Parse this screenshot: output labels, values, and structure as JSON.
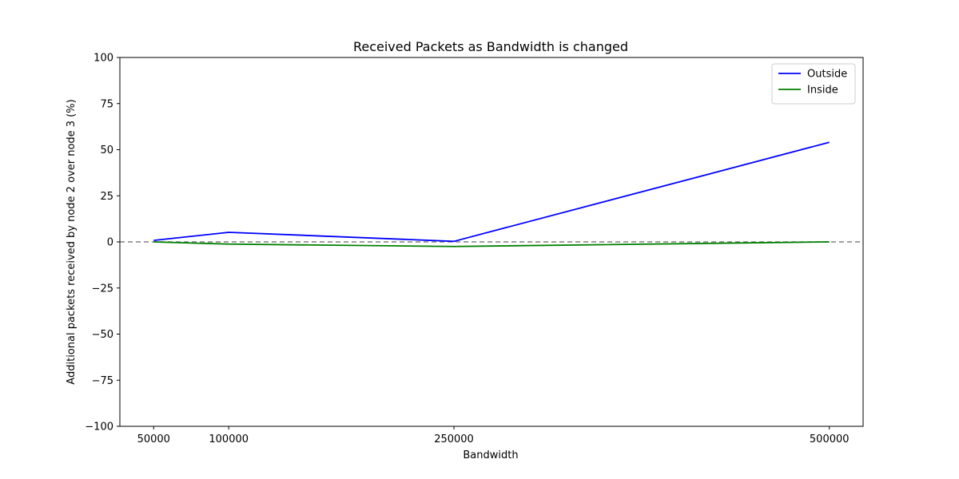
{
  "chart_data": {
    "type": "line",
    "title": "Received Packets as Bandwidth is changed",
    "xlabel": "Bandwidth",
    "ylabel": "Additional packets received by node 2 over node 3 (%)",
    "x": [
      50000,
      100000,
      250000,
      500000
    ],
    "x_tick_labels": [
      "50000",
      "100000",
      "250000",
      "500000"
    ],
    "y_ticks": [
      100,
      75,
      50,
      25,
      0,
      -25,
      -50,
      -75,
      -100
    ],
    "y_tick_labels": [
      "100",
      "75",
      "50",
      "25",
      "0",
      "−25",
      "−50",
      "−75",
      "−100"
    ],
    "ylim": [
      -100,
      100
    ],
    "xlim": [
      27500,
      522500
    ],
    "series": [
      {
        "name": "Outside",
        "color": "#0000ff",
        "values": [
          0.8,
          5.2,
          0.3,
          54.0
        ]
      },
      {
        "name": "Inside",
        "color": "#008000",
        "values": [
          0.0,
          -1.2,
          -2.5,
          0.0
        ]
      }
    ],
    "reference_line": {
      "y": 0,
      "style": "dashed",
      "color": "#808080"
    },
    "legend_position": "top-right",
    "grid": false
  }
}
